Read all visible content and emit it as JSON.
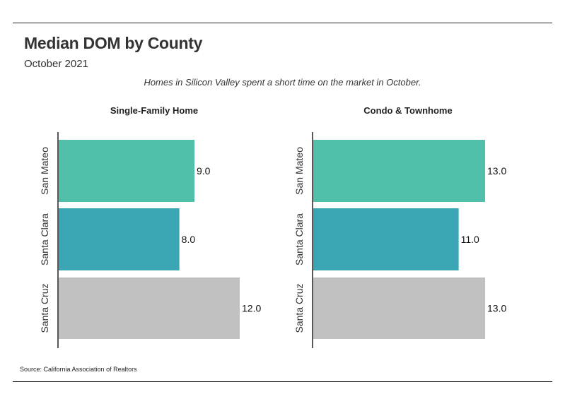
{
  "header": {
    "title": "Median DOM by County",
    "subtitle": "October 2021",
    "caption": "Homes in Silicon Valley spent a short time on the market in October."
  },
  "footer": {
    "source": "Source:  California Association of Realtors"
  },
  "colors": {
    "San Mateo": "#52bfaa",
    "Santa Clara": "#3aa6b4",
    "Santa Cruz": "#c1c1c1",
    "axis": "#222222"
  },
  "chart_data": [
    {
      "type": "bar",
      "orientation": "horizontal",
      "title": "Single-Family Home",
      "categories": [
        "San Mateo",
        "Santa Clara",
        "Santa Cruz"
      ],
      "values": [
        9.0,
        8.0,
        12.0
      ],
      "value_labels": [
        "9.0",
        "8.0",
        "12.0"
      ],
      "xlim": [
        0,
        12.0
      ],
      "grid": false
    },
    {
      "type": "bar",
      "orientation": "horizontal",
      "title": "Condo & Townhome",
      "categories": [
        "San Mateo",
        "Santa Clara",
        "Santa Cruz"
      ],
      "values": [
        13.0,
        11.0,
        13.0
      ],
      "value_labels": [
        "13.0",
        "11.0",
        "13.0"
      ],
      "xlim": [
        0,
        13.0
      ],
      "grid": false
    }
  ]
}
